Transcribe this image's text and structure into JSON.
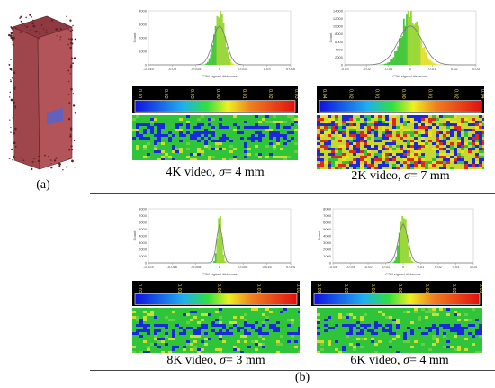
{
  "figure": {
    "label_a": "(a)",
    "label_b": "(b)",
    "colors": {
      "box_face": "#b2545a",
      "box_edge": "#7a3438",
      "patch": "#5b63c9",
      "hist_green": "#46c83c",
      "hist_yellow": "#e6e034",
      "gauss": "#777777"
    },
    "panels": [
      {
        "id": "4k",
        "caption_prefix": "4K video, ",
        "sigma_symbol": "σ",
        "caption_suffix": "= 4 mm",
        "hist_xlabel": "C2M signed distances",
        "hist_ylabel": "Count",
        "x_ticks": [
          "-0.045",
          "-0.03",
          "-0.015",
          "0",
          "0.015",
          "0.03",
          "0.045"
        ],
        "y_ticks": [
          "0",
          "1000",
          "2000",
          "3000",
          "4000"
        ],
        "scale_ticks": [
          "0.01",
          "0.02",
          "0.03",
          "0.00",
          "0.01",
          "0.02",
          "0.03"
        ]
      },
      {
        "id": "2k",
        "caption_prefix": "2K video, ",
        "sigma_symbol": "σ",
        "caption_suffix": "= 7 mm",
        "hist_xlabel": "C2M signed distances",
        "hist_ylabel": "Count",
        "x_ticks": [
          "-0.03",
          "-0.02",
          "-0.01",
          "0",
          "0.01",
          "0.02",
          "0.03"
        ],
        "y_ticks": [
          "0",
          "2000",
          "4000",
          "6000",
          "8000",
          "10000",
          "12000",
          "14000"
        ],
        "scale_ticks": [
          "0.04",
          "0.02",
          "0.01",
          "0.00",
          "0.01",
          "0.02",
          "0.04"
        ]
      },
      {
        "id": "8k",
        "caption_prefix": "8K video, ",
        "sigma_symbol": "σ",
        "caption_suffix": "= 3 mm",
        "hist_xlabel": "C2M signed distances",
        "hist_ylabel": "Count",
        "x_ticks": [
          "-0.024",
          "-0.016",
          "-0.008",
          "0",
          "0.008",
          "0.016",
          "0.024"
        ],
        "y_ticks": [
          "0",
          "1000",
          "2000",
          "3000",
          "4000",
          "5000",
          "6000",
          "7000",
          "8000"
        ],
        "scale_ticks": [
          "0.02",
          "0.01",
          "0.00",
          "0.01",
          "0.02"
        ]
      },
      {
        "id": "6k",
        "caption_prefix": "6K video, ",
        "sigma_symbol": "σ",
        "caption_suffix": "= 4 mm",
        "hist_xlabel": "C2M signed distances",
        "hist_ylabel": "Count",
        "x_ticks": [
          "-0.04",
          "-0.03",
          "-0.02",
          "-0.01",
          "0",
          "0.01",
          "0.02",
          "0.03",
          "0.04"
        ],
        "y_ticks": [
          "0",
          "1000",
          "2000",
          "3000",
          "4000",
          "5000",
          "6000",
          "7000",
          "8000"
        ],
        "scale_ticks": [
          "0.03",
          "0.02",
          "0.01",
          "0.00",
          "0.01",
          "0.02",
          "0.03"
        ]
      }
    ]
  }
}
